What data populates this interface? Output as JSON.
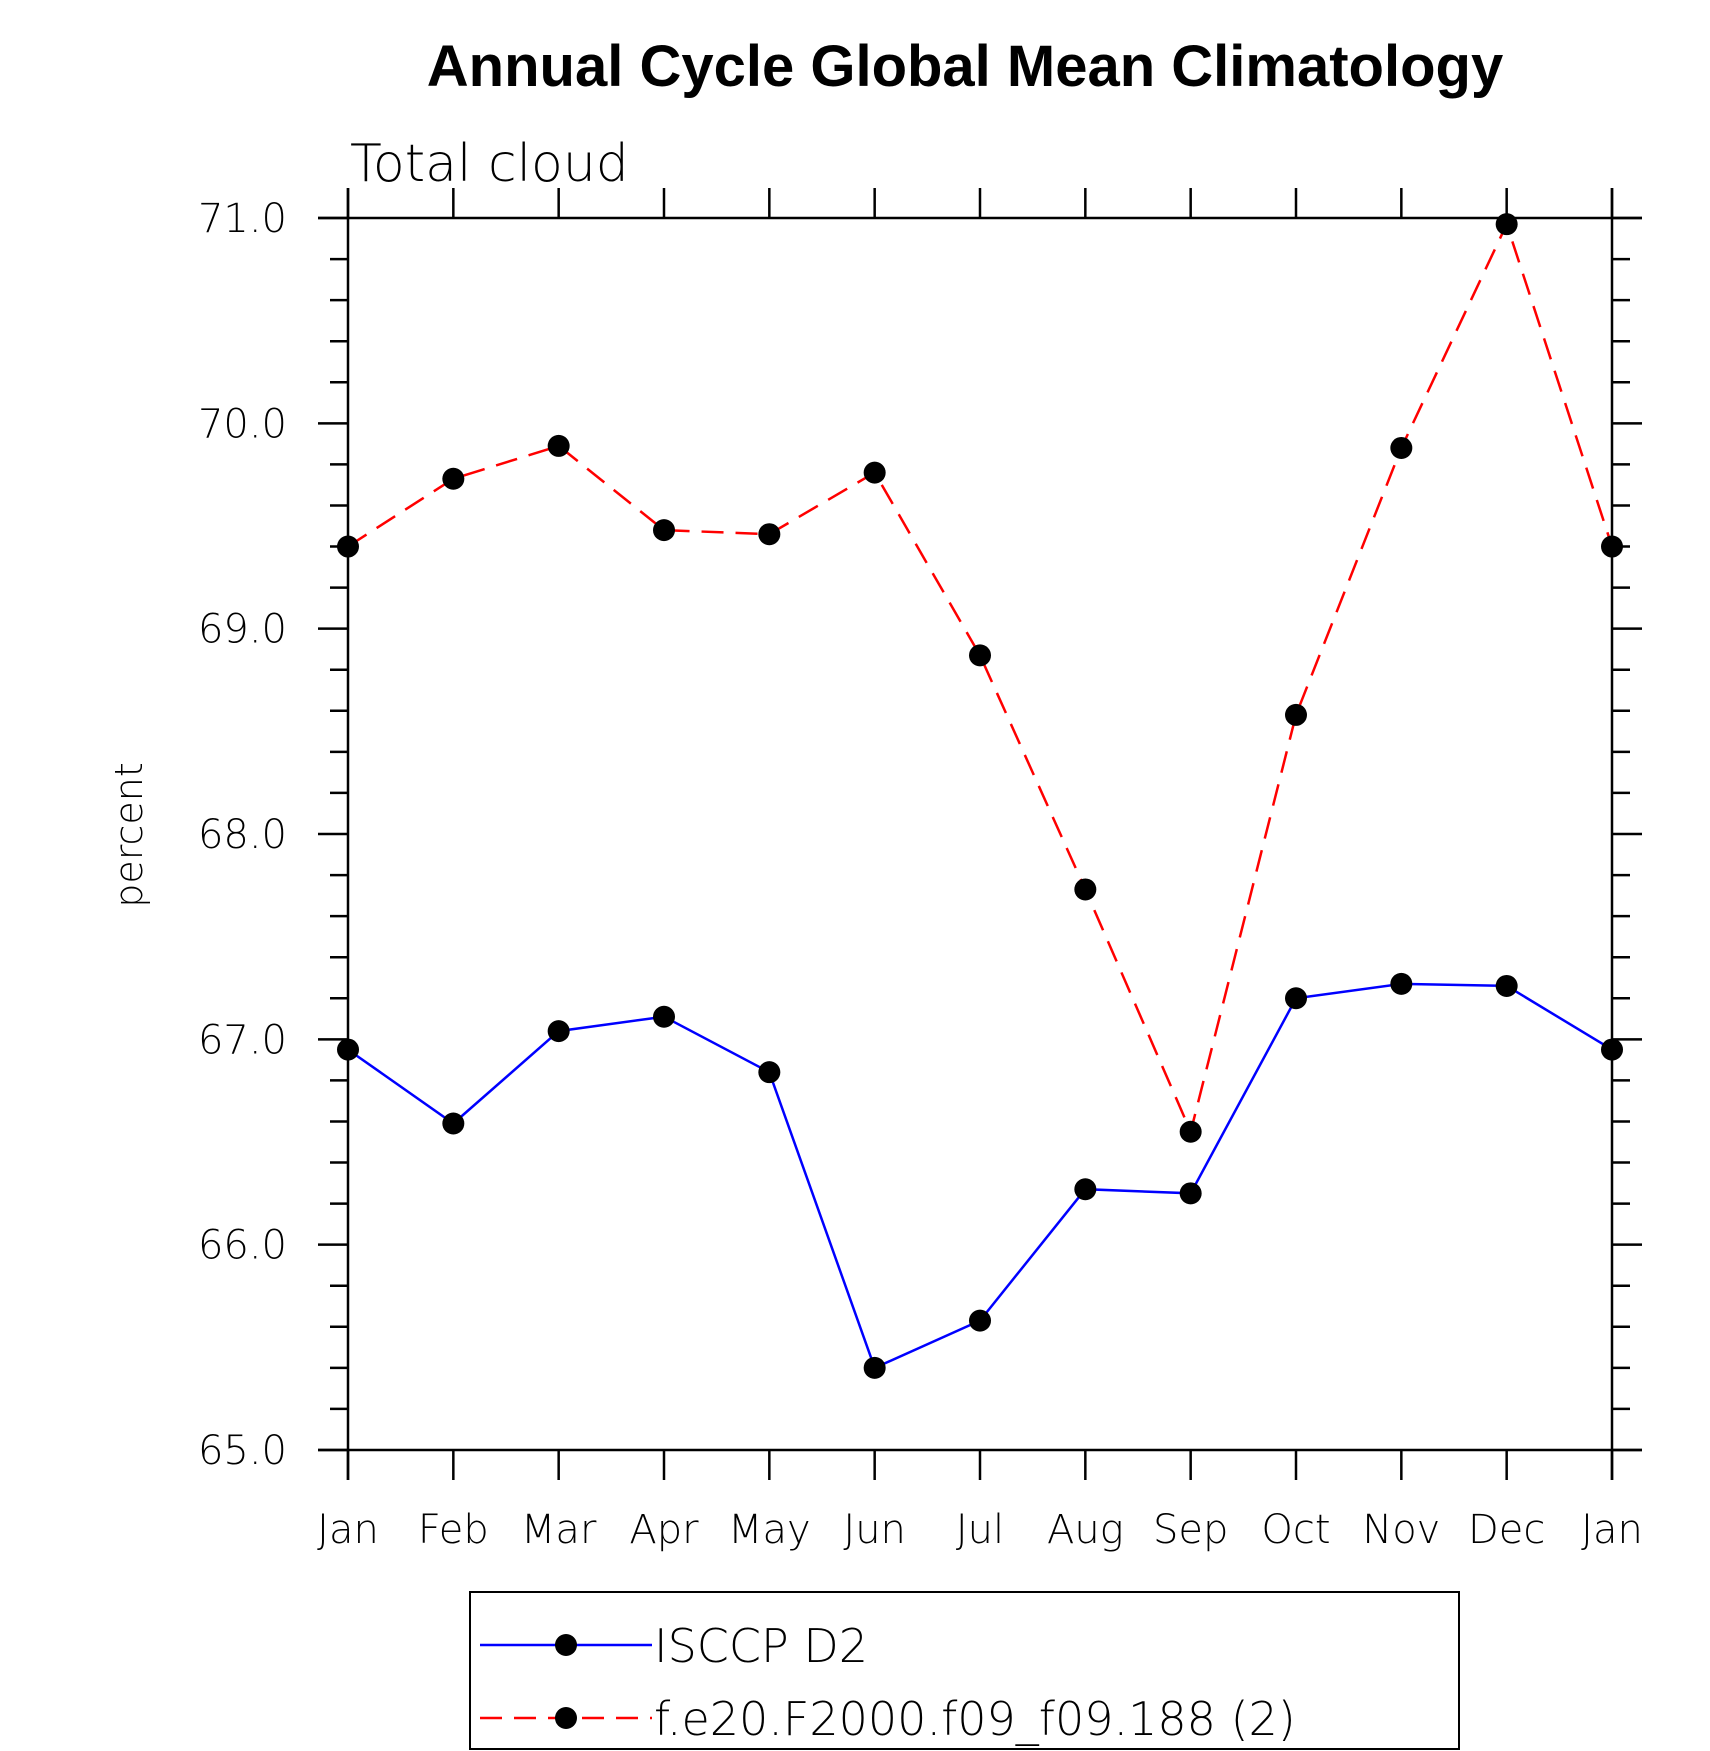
{
  "chart_data": {
    "type": "line",
    "title": "Annual Cycle Global Mean Climatology",
    "subtitle": "Total cloud",
    "xlabel": "",
    "ylabel": "percent",
    "categories": [
      "Jan",
      "Feb",
      "Mar",
      "Apr",
      "May",
      "Jun",
      "Jul",
      "Aug",
      "Sep",
      "Oct",
      "Nov",
      "Dec",
      "Jan"
    ],
    "ylim": [
      65.0,
      71.0
    ],
    "yticks": [
      "65.0",
      "66.0",
      "67.0",
      "68.0",
      "69.0",
      "70.0",
      "71.0"
    ],
    "legend_position": "bottom",
    "series": [
      {
        "name": "ISCCP D2",
        "color": "#0000ff",
        "dash": "solid",
        "marker": "filled-circle",
        "values": [
          66.95,
          66.59,
          67.04,
          67.11,
          66.84,
          65.4,
          65.63,
          66.27,
          66.25,
          67.2,
          67.27,
          67.26,
          66.95
        ]
      },
      {
        "name": "f.e20.F2000.f09_f09.188 (2)",
        "color": "#ff0000",
        "dash": "dashed",
        "marker": "filled-circle",
        "values": [
          69.4,
          69.73,
          69.89,
          69.48,
          69.46,
          69.76,
          68.87,
          67.73,
          66.55,
          68.58,
          69.88,
          70.97,
          69.4
        ]
      }
    ]
  }
}
